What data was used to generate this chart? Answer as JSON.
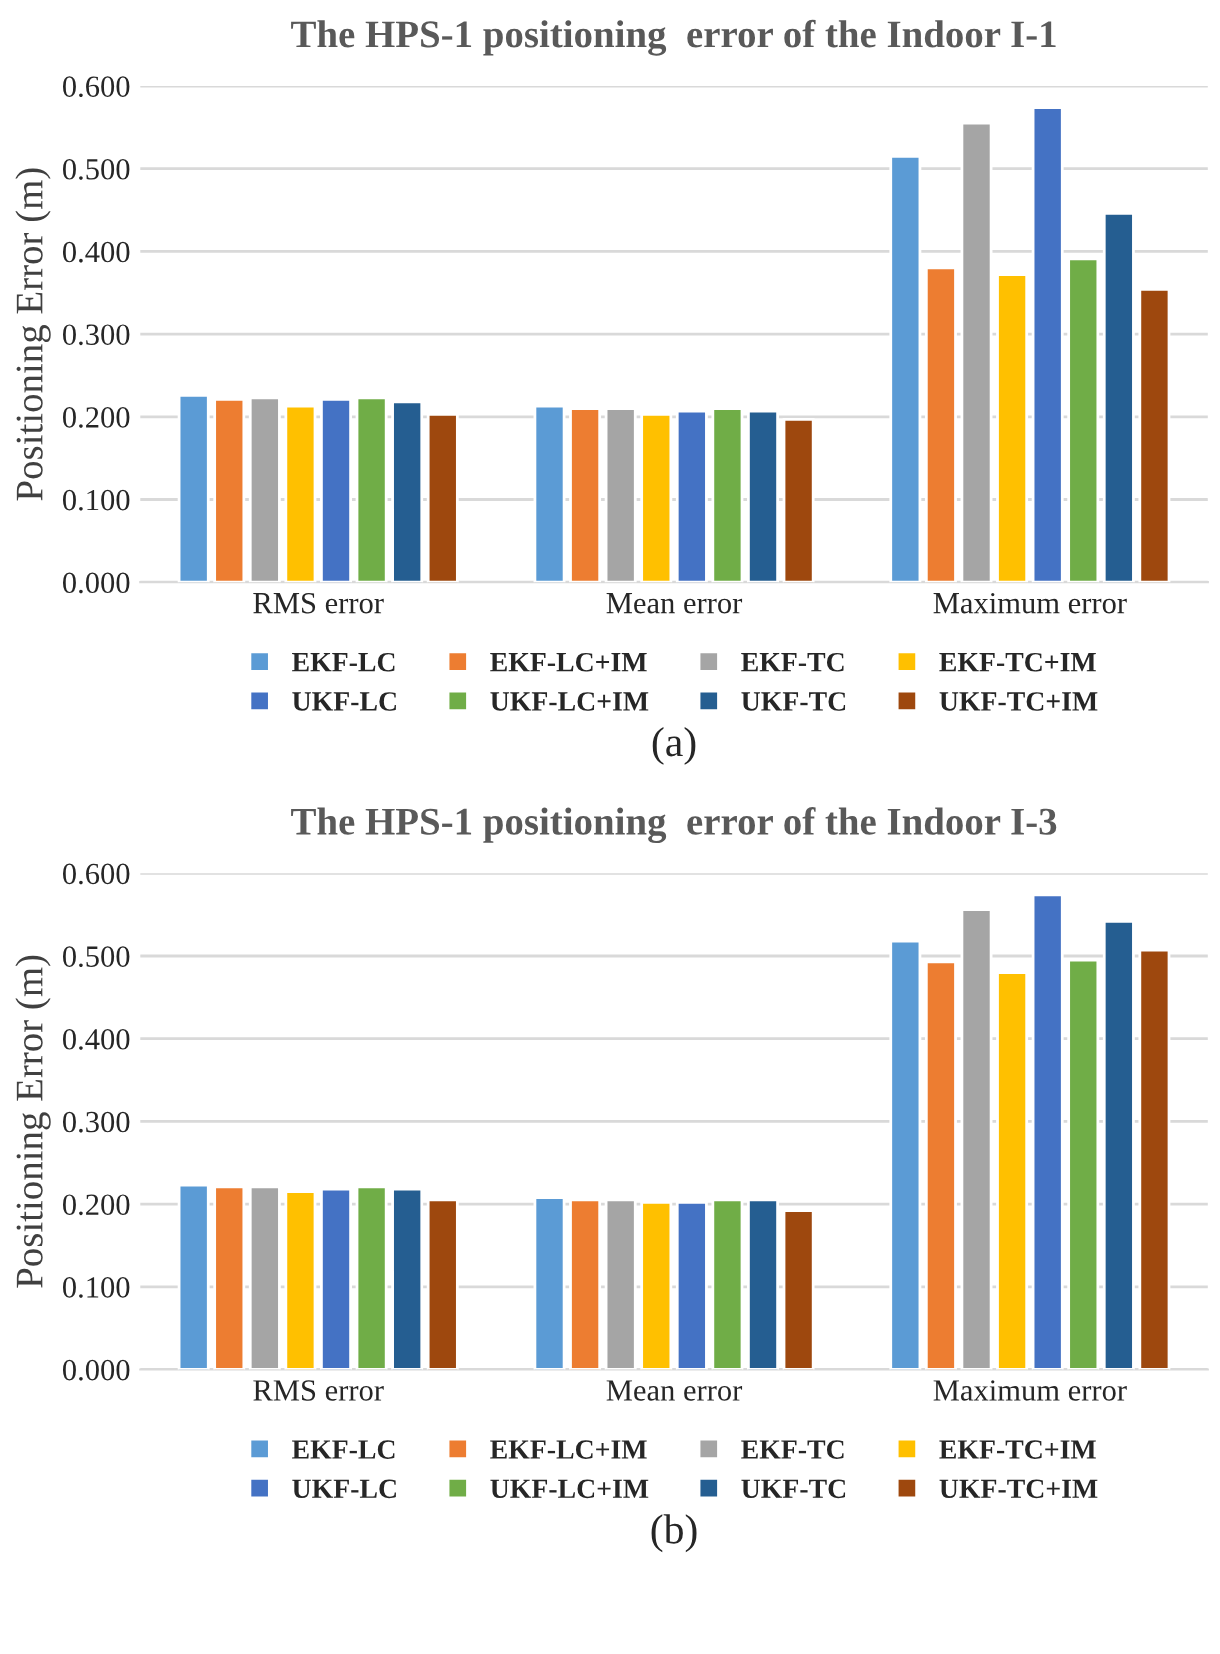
{
  "chart_data": [
    {
      "type": "bar",
      "title": "The HPS-1 positioning  error of the Indoor I-1",
      "ylabel": "Positioning Error (m)",
      "categories": [
        "RMS error",
        "Mean error",
        "Maximum error"
      ],
      "series": [
        {
          "name": "EKF-LC",
          "color": "#5b9bd5",
          "values": [
            0.226,
            0.213,
            0.515
          ]
        },
        {
          "name": "EKF-LC+IM",
          "color": "#ed7d31",
          "values": [
            0.221,
            0.21,
            0.38
          ]
        },
        {
          "name": "EKF-TC",
          "color": "#a5a5a5",
          "values": [
            0.223,
            0.21,
            0.555
          ]
        },
        {
          "name": "EKF-TC+IM",
          "color": "#ffc000",
          "values": [
            0.213,
            0.203,
            0.372
          ]
        },
        {
          "name": "UKF-LC",
          "color": "#4472c4",
          "values": [
            0.221,
            0.207,
            0.574
          ]
        },
        {
          "name": "UKF-LC+IM",
          "color": "#70ad47",
          "values": [
            0.223,
            0.21,
            0.391
          ]
        },
        {
          "name": "UKF-TC",
          "color": "#255e91",
          "values": [
            0.218,
            0.207,
            0.446
          ]
        },
        {
          "name": "UKF-TC+IM",
          "color": "#9e480e",
          "values": [
            0.203,
            0.197,
            0.354
          ]
        }
      ],
      "ylim": [
        0,
        0.6
      ],
      "yticks": [
        {
          "value": 0,
          "label": "0.000"
        },
        {
          "value": 0.1,
          "label": "0.100"
        },
        {
          "value": 0.2,
          "label": "0.200"
        },
        {
          "value": 0.3,
          "label": "0.300"
        },
        {
          "value": 0.4,
          "label": "0.400"
        },
        {
          "value": 0.5,
          "label": "0.500"
        },
        {
          "value": 0.6,
          "label": "0.600"
        }
      ],
      "grid": "y",
      "legend": "bottom",
      "annotations": [
        "(a)"
      ]
    },
    {
      "type": "bar",
      "title": "The HPS-1 positioning  error of the Indoor I-3",
      "ylabel": "Positioning Error (m)",
      "categories": [
        "RMS error",
        "Mean error",
        "Maximum error"
      ],
      "series": [
        {
          "name": "EKF-LC",
          "color": "#5b9bd5",
          "values": [
            0.223,
            0.208,
            0.518
          ]
        },
        {
          "name": "EKF-LC+IM",
          "color": "#ed7d31",
          "values": [
            0.221,
            0.205,
            0.493
          ]
        },
        {
          "name": "EKF-TC",
          "color": "#a5a5a5",
          "values": [
            0.221,
            0.205,
            0.556
          ]
        },
        {
          "name": "EKF-TC+IM",
          "color": "#ffc000",
          "values": [
            0.215,
            0.202,
            0.48
          ]
        },
        {
          "name": "UKF-LC",
          "color": "#4472c4",
          "values": [
            0.218,
            0.202,
            0.574
          ]
        },
        {
          "name": "UKF-LC+IM",
          "color": "#70ad47",
          "values": [
            0.221,
            0.205,
            0.495
          ]
        },
        {
          "name": "UKF-TC",
          "color": "#255e91",
          "values": [
            0.218,
            0.205,
            0.542
          ]
        },
        {
          "name": "UKF-TC+IM",
          "color": "#9e480e",
          "values": [
            0.205,
            0.192,
            0.507
          ]
        }
      ],
      "ylim": [
        0,
        0.6
      ],
      "yticks": [
        {
          "value": 0,
          "label": "0.000"
        },
        {
          "value": 0.1,
          "label": "0.100"
        },
        {
          "value": 0.2,
          "label": "0.200"
        },
        {
          "value": 0.3,
          "label": "0.300"
        },
        {
          "value": 0.4,
          "label": "0.400"
        },
        {
          "value": 0.5,
          "label": "0.500"
        },
        {
          "value": 0.6,
          "label": "0.600"
        }
      ],
      "grid": "y",
      "legend": "bottom",
      "annotations": [
        "(b)"
      ]
    }
  ]
}
